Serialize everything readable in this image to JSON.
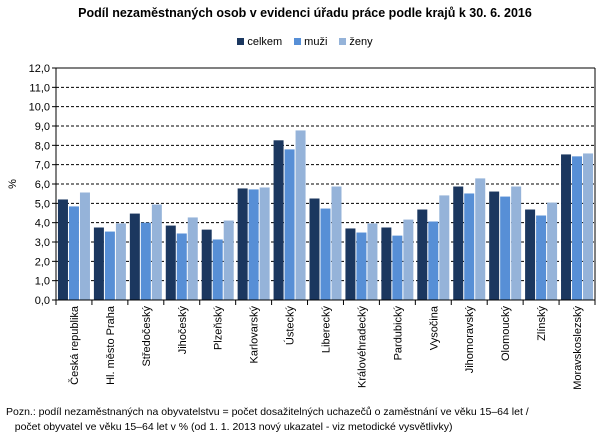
{
  "chart_data": {
    "type": "bar",
    "title": "Podíl nezaměstnaných osob v evidenci úřadu práce podle krajů k 30. 6. 2016",
    "ylabel": "%",
    "xlabel": "",
    "ylim": [
      0,
      12
    ],
    "yticks": [
      "0,0",
      "1,0",
      "2,0",
      "3,0",
      "4,0",
      "5,0",
      "6,0",
      "7,0",
      "8,0",
      "9,0",
      "10,0",
      "11,0",
      "12,0"
    ],
    "legend_position": "top",
    "grid": true,
    "categories": [
      "Česká republika",
      "Hl. město Praha",
      "Středočeský",
      "Jihočeský",
      "Plzeňský",
      "Karlovarský",
      "Ústecký",
      "Liberecký",
      "Královéhradecký",
      "Pardubický",
      "Vysočina",
      "Jihomoravský",
      "Olomoucký",
      "Zlínský",
      "Moravskoslezský"
    ],
    "series": [
      {
        "name": "celkem",
        "color": "#1b375f",
        "values": [
          5.2,
          3.75,
          4.47,
          3.85,
          3.64,
          5.77,
          8.26,
          5.25,
          3.7,
          3.75,
          4.68,
          5.87,
          5.61,
          4.68,
          7.53
        ]
      },
      {
        "name": "muži",
        "color": "#578fd6",
        "values": [
          4.84,
          3.54,
          4.0,
          3.44,
          3.13,
          5.72,
          7.79,
          4.73,
          3.49,
          3.33,
          4.06,
          5.51,
          5.35,
          4.37,
          7.43
        ]
      },
      {
        "name": "ženy",
        "color": "#95b3d9",
        "values": [
          5.56,
          3.96,
          4.94,
          4.27,
          4.11,
          5.82,
          8.77,
          5.87,
          3.96,
          4.16,
          5.41,
          6.29,
          5.87,
          5.04,
          7.58
        ]
      }
    ]
  },
  "note": [
    "Pozn.: podíl nezaměstnaných na obyvatelstvu = počet dosažitelných uchazečů o zaměstnání ve věku 15–64 let /",
    "   počet obyvatel ve věku 15–64 let v % (od 1. 1. 2013 nový ukazatel - viz metodické vysvětlivky)"
  ]
}
